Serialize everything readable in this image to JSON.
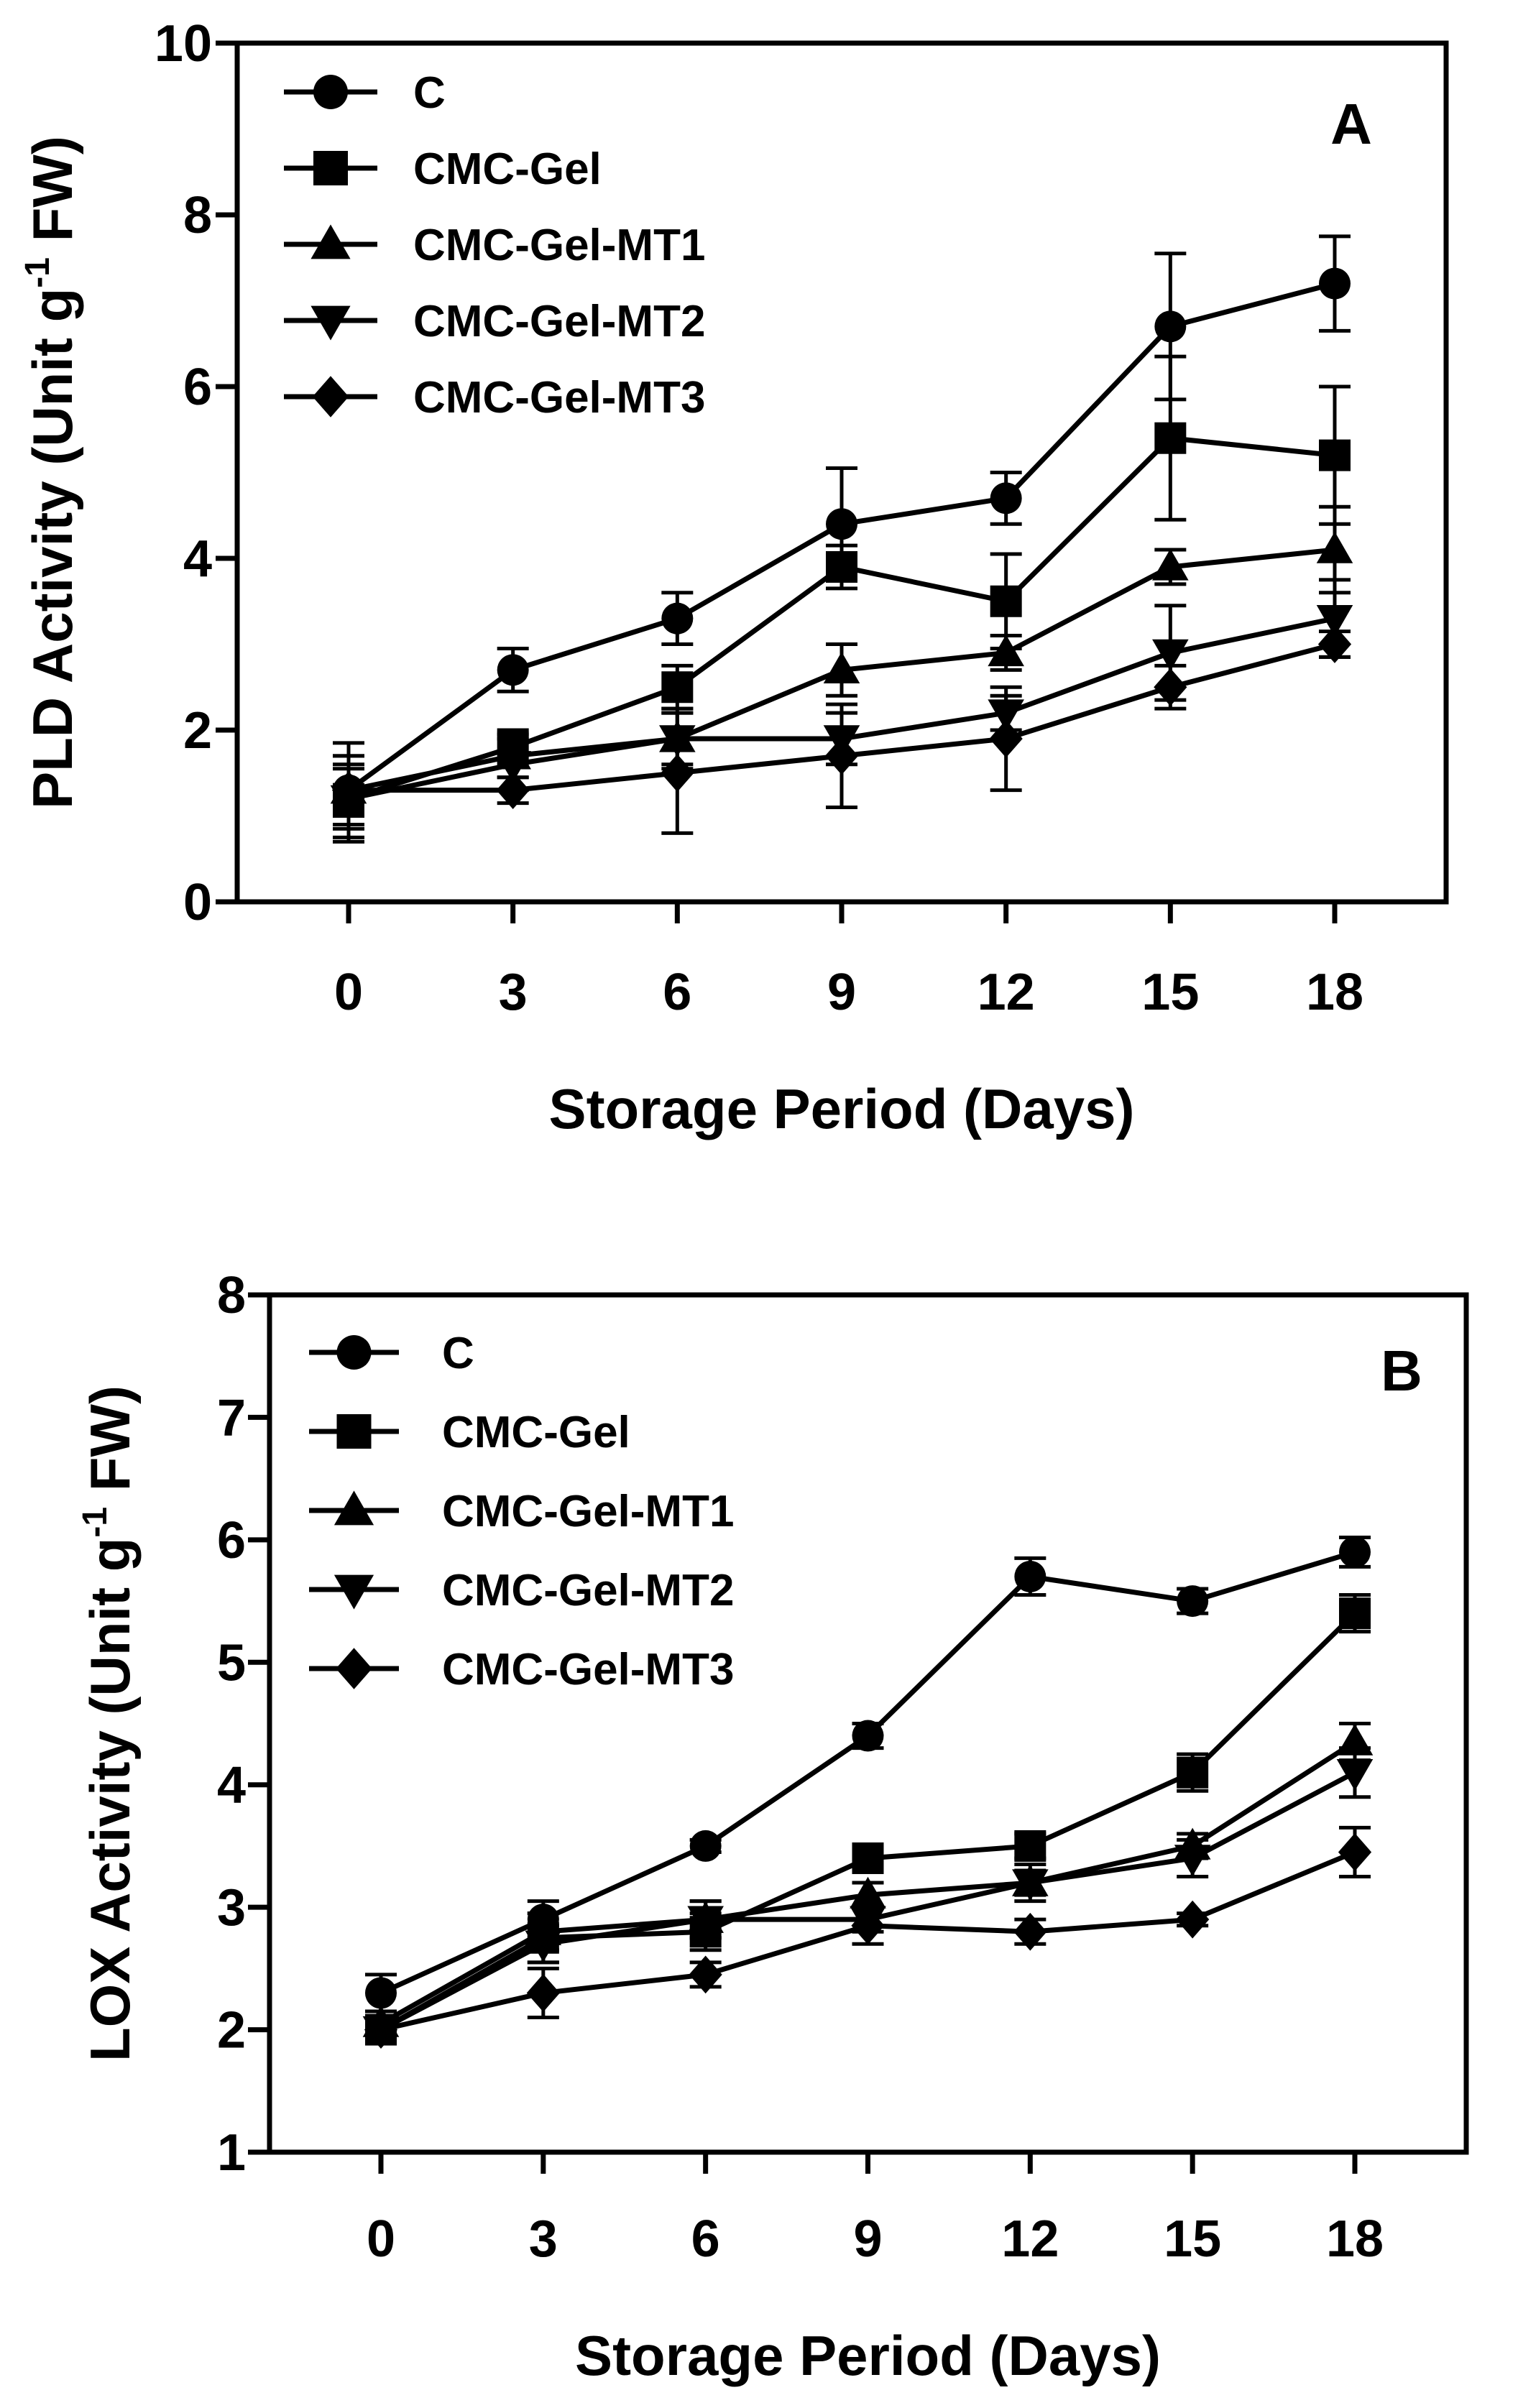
{
  "chart_data": [
    {
      "type": "line",
      "panel_label": "A",
      "xlabel": "Storage Period (Days)",
      "ylabel_main": "PLD Activity (Unit g",
      "ylabel_sup": "-1",
      "ylabel_end": " FW)",
      "x": [
        0,
        3,
        6,
        9,
        12,
        15,
        18
      ],
      "x_ticks": [
        "0",
        "3",
        "6",
        "9",
        "12",
        "15",
        "18"
      ],
      "ylim": [
        0,
        10
      ],
      "y_ticks": [
        0,
        2,
        4,
        6,
        8,
        10
      ],
      "y_tick_labels": [
        "0",
        "2",
        "4",
        "6",
        "8",
        "10"
      ],
      "legend_position": "top-left",
      "series": [
        {
          "name": "C",
          "marker": "circle",
          "values": [
            1.3,
            2.7,
            3.3,
            4.4,
            4.7,
            6.7,
            7.2
          ],
          "errors": [
            0.55,
            0.25,
            0.3,
            0.65,
            0.3,
            0.85,
            0.55
          ]
        },
        {
          "name": "CMC-Gel",
          "marker": "square",
          "values": [
            1.2,
            1.8,
            2.5,
            3.9,
            3.5,
            5.4,
            5.2
          ],
          "errors": [
            0.5,
            0.2,
            0.25,
            0.25,
            0.55,
            0.95,
            0.8
          ]
        },
        {
          "name": "CMC-Gel-MT1",
          "marker": "triangle-up",
          "values": [
            1.3,
            1.7,
            1.9,
            2.7,
            2.9,
            3.9,
            4.1
          ],
          "errors": [
            0.4,
            0.25,
            0.3,
            0.3,
            0.2,
            0.2,
            0.5
          ]
        },
        {
          "name": "CMC-Gel-MT2",
          "marker": "triangle-down",
          "values": [
            1.2,
            1.6,
            1.9,
            1.9,
            2.2,
            2.9,
            3.3
          ],
          "errors": [
            0.35,
            0.3,
            0.35,
            0.3,
            0.2,
            0.55,
            0.45
          ]
        },
        {
          "name": "CMC-Gel-MT3",
          "marker": "diamond",
          "values": [
            1.3,
            1.3,
            1.5,
            1.7,
            1.9,
            2.5,
            3.0
          ],
          "errors": [
            0.3,
            0.15,
            0.7,
            0.6,
            0.6,
            0.25,
            0.15
          ]
        }
      ]
    },
    {
      "type": "line",
      "panel_label": "B",
      "xlabel": "Storage Period (Days)",
      "ylabel_main": "LOX Activity (Unit g",
      "ylabel_sup": "-1",
      "ylabel_end": " FW)",
      "x": [
        0,
        3,
        6,
        9,
        12,
        15,
        18
      ],
      "x_ticks": [
        "0",
        "3",
        "6",
        "9",
        "12",
        "15",
        "18"
      ],
      "ylim": [
        1,
        8
      ],
      "y_ticks": [
        1,
        2,
        3,
        4,
        5,
        6,
        7,
        8
      ],
      "y_tick_labels": [
        "1",
        "2",
        "3",
        "4",
        "5",
        "6",
        "7",
        "8"
      ],
      "legend_position": "top-left",
      "series": [
        {
          "name": "C",
          "marker": "circle",
          "values": [
            2.3,
            2.9,
            3.5,
            4.4,
            5.7,
            5.5,
            5.9
          ],
          "errors": [
            0.15,
            0.15,
            0.05,
            0.1,
            0.15,
            0.1,
            0.12
          ]
        },
        {
          "name": "CMC-Gel",
          "marker": "square",
          "values": [
            2.0,
            2.75,
            2.8,
            3.4,
            3.5,
            4.1,
            5.4
          ],
          "errors": [
            0.1,
            0.2,
            0.15,
            0.05,
            0.1,
            0.15,
            0.15
          ]
        },
        {
          "name": "CMC-Gel-MT1",
          "marker": "triangle-up",
          "values": [
            2.05,
            2.8,
            2.9,
            3.1,
            3.2,
            3.5,
            4.35
          ],
          "errors": [
            0.1,
            0.15,
            0.15,
            0.1,
            0.15,
            0.1,
            0.15
          ]
        },
        {
          "name": "CMC-Gel-MT2",
          "marker": "triangle-down",
          "values": [
            2.0,
            2.7,
            2.9,
            2.9,
            3.2,
            3.4,
            4.1
          ],
          "errors": [
            0.1,
            0.15,
            0.15,
            0.1,
            0.1,
            0.15,
            0.2
          ]
        },
        {
          "name": "CMC-Gel-MT3",
          "marker": "diamond",
          "values": [
            2.0,
            2.3,
            2.45,
            2.85,
            2.8,
            2.9,
            3.45
          ],
          "errors": [
            0.1,
            0.2,
            0.1,
            0.15,
            0.1,
            0.05,
            0.2
          ]
        }
      ]
    }
  ]
}
